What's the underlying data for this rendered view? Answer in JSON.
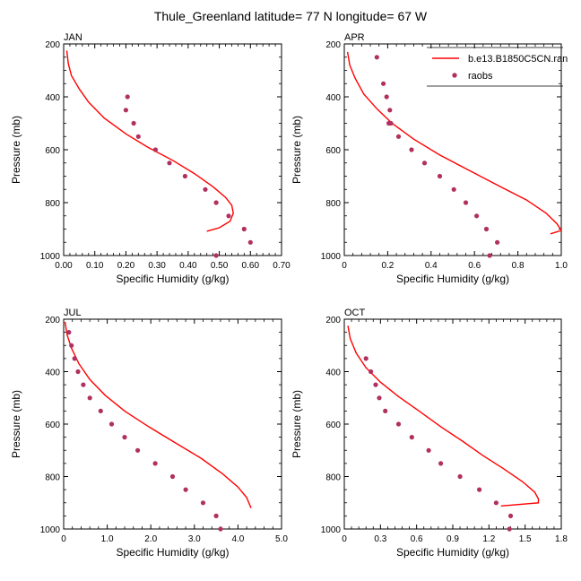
{
  "title": "Thule_Greenland  latitude= 77 N longitude= 67 W",
  "legend": {
    "model_label": "b.e13.B1850C5CN.ran",
    "obs_label": "raobs"
  },
  "colors": {
    "model_line": "#ff0000",
    "obs_marker": "#b03060"
  },
  "chart_data": [
    {
      "type": "line",
      "panel": "JAN",
      "xlabel": "Specific Humidity (g/kg)",
      "ylabel": "Pressure (mb)",
      "xlim": [
        0,
        0.7
      ],
      "ylim": [
        1000,
        200
      ],
      "x_ticks": [
        "0.00",
        "0.10",
        "0.20",
        "0.30",
        "0.40",
        "0.50",
        "0.60",
        "0.70"
      ],
      "y_ticks": [
        "200",
        "400",
        "600",
        "800",
        "1000"
      ],
      "model": {
        "x": [
          0.01,
          0.015,
          0.025,
          0.05,
          0.08,
          0.13,
          0.2,
          0.27,
          0.35,
          0.42,
          0.48,
          0.52,
          0.54,
          0.545,
          0.535,
          0.5,
          0.46
        ],
        "y": [
          225,
          275,
          320,
          370,
          420,
          480,
          540,
          590,
          640,
          690,
          740,
          780,
          810,
          840,
          870,
          895,
          908
        ]
      },
      "obs": {
        "x": [
          0.205,
          0.2,
          0.225,
          0.24,
          0.295,
          0.34,
          0.39,
          0.455,
          0.49,
          0.53,
          0.58,
          0.6,
          0.49
        ],
        "y": [
          400,
          450,
          500,
          550,
          600,
          650,
          700,
          750,
          800,
          850,
          900,
          950,
          1000
        ]
      }
    },
    {
      "type": "line",
      "panel": "APR",
      "xlabel": "Specific Humidity (g/kg)",
      "ylabel": "Pressure (mb)",
      "xlim": [
        0,
        1.0
      ],
      "ylim": [
        1000,
        200
      ],
      "x_ticks": [
        "0",
        "0.2",
        "0.4",
        "0.6",
        "0.8",
        "1.0"
      ],
      "y_ticks": [
        "200",
        "400",
        "600",
        "800",
        "1000"
      ],
      "model": {
        "x": [
          0.015,
          0.025,
          0.05,
          0.09,
          0.15,
          0.22,
          0.32,
          0.44,
          0.58,
          0.72,
          0.84,
          0.93,
          0.98,
          1.0,
          0.95
        ],
        "y": [
          230,
          280,
          330,
          390,
          445,
          500,
          560,
          620,
          680,
          740,
          790,
          840,
          880,
          905,
          918
        ]
      },
      "obs": {
        "x": [
          0.15,
          0.18,
          0.195,
          0.21,
          0.205,
          0.215,
          0.25,
          0.31,
          0.37,
          0.44,
          0.505,
          0.56,
          0.61,
          0.655,
          0.705,
          0.67
        ],
        "y": [
          250,
          350,
          400,
          450,
          500,
          500,
          550,
          600,
          650,
          700,
          750,
          800,
          850,
          900,
          950,
          1000
        ]
      }
    },
    {
      "type": "line",
      "panel": "JUL",
      "xlabel": "Specific Humidity (g/kg)",
      "ylabel": "Pressure (mb)",
      "xlim": [
        0,
        5.0
      ],
      "ylim": [
        1000,
        200
      ],
      "x_ticks": [
        "0",
        "1.0",
        "2.0",
        "3.0",
        "4.0",
        "5.0"
      ],
      "y_ticks": [
        "200",
        "400",
        "600",
        "800",
        "1000"
      ],
      "model": {
        "x": [
          0.03,
          0.08,
          0.18,
          0.35,
          0.6,
          0.95,
          1.4,
          1.95,
          2.55,
          3.15,
          3.65,
          4.0,
          4.2,
          4.3
        ],
        "y": [
          210,
          260,
          310,
          370,
          430,
          490,
          550,
          610,
          670,
          730,
          790,
          840,
          880,
          920
        ]
      },
      "obs": {
        "x": [
          0.12,
          0.18,
          0.25,
          0.33,
          0.45,
          0.6,
          0.85,
          1.1,
          1.4,
          1.7,
          2.1,
          2.5,
          2.8,
          3.2,
          3.5,
          3.6
        ],
        "y": [
          250,
          300,
          350,
          400,
          450,
          500,
          550,
          600,
          650,
          700,
          750,
          800,
          850,
          900,
          950,
          1000
        ]
      }
    },
    {
      "type": "line",
      "panel": "OCT",
      "xlabel": "Specific Humidity (g/kg)",
      "ylabel": "Pressure (mb)",
      "xlim": [
        0,
        1.8
      ],
      "ylim": [
        1000,
        200
      ],
      "x_ticks": [
        "0",
        "0.3",
        "0.6",
        "0.9",
        "1.2",
        "1.5",
        "1.8"
      ],
      "y_ticks": [
        "200",
        "400",
        "600",
        "800",
        "1000"
      ],
      "model": {
        "x": [
          0.03,
          0.05,
          0.1,
          0.18,
          0.3,
          0.45,
          0.62,
          0.8,
          0.98,
          1.15,
          1.32,
          1.48,
          1.58,
          1.61,
          1.61,
          1.3
        ],
        "y": [
          225,
          275,
          330,
          385,
          440,
          495,
          550,
          610,
          665,
          720,
          770,
          820,
          860,
          885,
          900,
          912
        ]
      },
      "obs": {
        "x": [
          0.18,
          0.22,
          0.26,
          0.29,
          0.34,
          0.45,
          0.56,
          0.7,
          0.8,
          0.96,
          1.12,
          1.26,
          1.38,
          1.37
        ],
        "y": [
          350,
          400,
          450,
          500,
          550,
          600,
          650,
          700,
          750,
          800,
          850,
          900,
          950,
          1000
        ]
      }
    }
  ]
}
